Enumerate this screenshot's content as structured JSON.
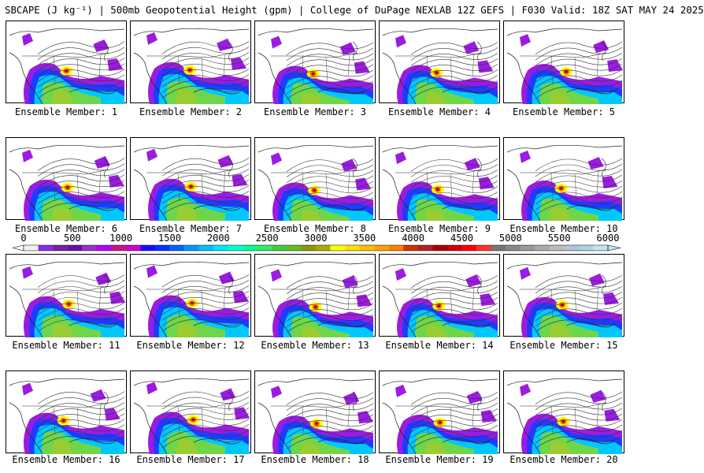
{
  "header": {
    "title": "SBCAPE (J kg⁻¹) | 500mb Geopotential Height (gpm) | College of DuPage NEXLAB 12Z GEFS | F030 Valid: 18Z SAT MAY 24 2025"
  },
  "members": [
    {
      "label": "Ensemble Member: 1"
    },
    {
      "label": "Ensemble Member: 2"
    },
    {
      "label": "Ensemble Member: 3"
    },
    {
      "label": "Ensemble Member: 4"
    },
    {
      "label": "Ensemble Member: 5"
    },
    {
      "label": "Ensemble Member: 6"
    },
    {
      "label": "Ensemble Member: 7"
    },
    {
      "label": "Ensemble Member: 8"
    },
    {
      "label": "Ensemble Member: 9"
    },
    {
      "label": "Ensemble Member: 10"
    },
    {
      "label": "Ensemble Member: 11"
    },
    {
      "label": "Ensemble Member: 12"
    },
    {
      "label": "Ensemble Member: 13"
    },
    {
      "label": "Ensemble Member: 14"
    },
    {
      "label": "Ensemble Member: 15"
    },
    {
      "label": "Ensemble Member: 16"
    },
    {
      "label": "Ensemble Member: 17"
    },
    {
      "label": "Ensemble Member: 18"
    },
    {
      "label": "Ensemble Member: 19"
    },
    {
      "label": "Ensemble Member: 20"
    }
  ],
  "colorbar": {
    "labels": [
      "0",
      "500",
      "1000",
      "1500",
      "2000",
      "2500",
      "3000",
      "3500",
      "4000",
      "4500",
      "5000",
      "5500",
      "6000"
    ],
    "colors": [
      "#f0f0f0",
      "#8a2be2",
      "#7b1fa2",
      "#6a0dad",
      "#9932cc",
      "#b000ff",
      "#c71585",
      "#d000d0",
      "#1a0dff",
      "#0033ff",
      "#0066ff",
      "#0099ff",
      "#00bfff",
      "#00e5ff",
      "#00ffd0",
      "#00ff99",
      "#33ee66",
      "#44cc44",
      "#66bb22",
      "#889911",
      "#aaaa00",
      "#ffff00",
      "#ffe000",
      "#ffc000",
      "#ffa000",
      "#ff8000",
      "#cc3300",
      "#b22222",
      "#aa0000",
      "#cc0000",
      "#ff0000",
      "#ff3333",
      "#777777",
      "#888888",
      "#999999",
      "#aaaaaa",
      "#bbbbbb",
      "#b0c4de",
      "#aad4e6",
      "#bfe6f0"
    ]
  }
}
